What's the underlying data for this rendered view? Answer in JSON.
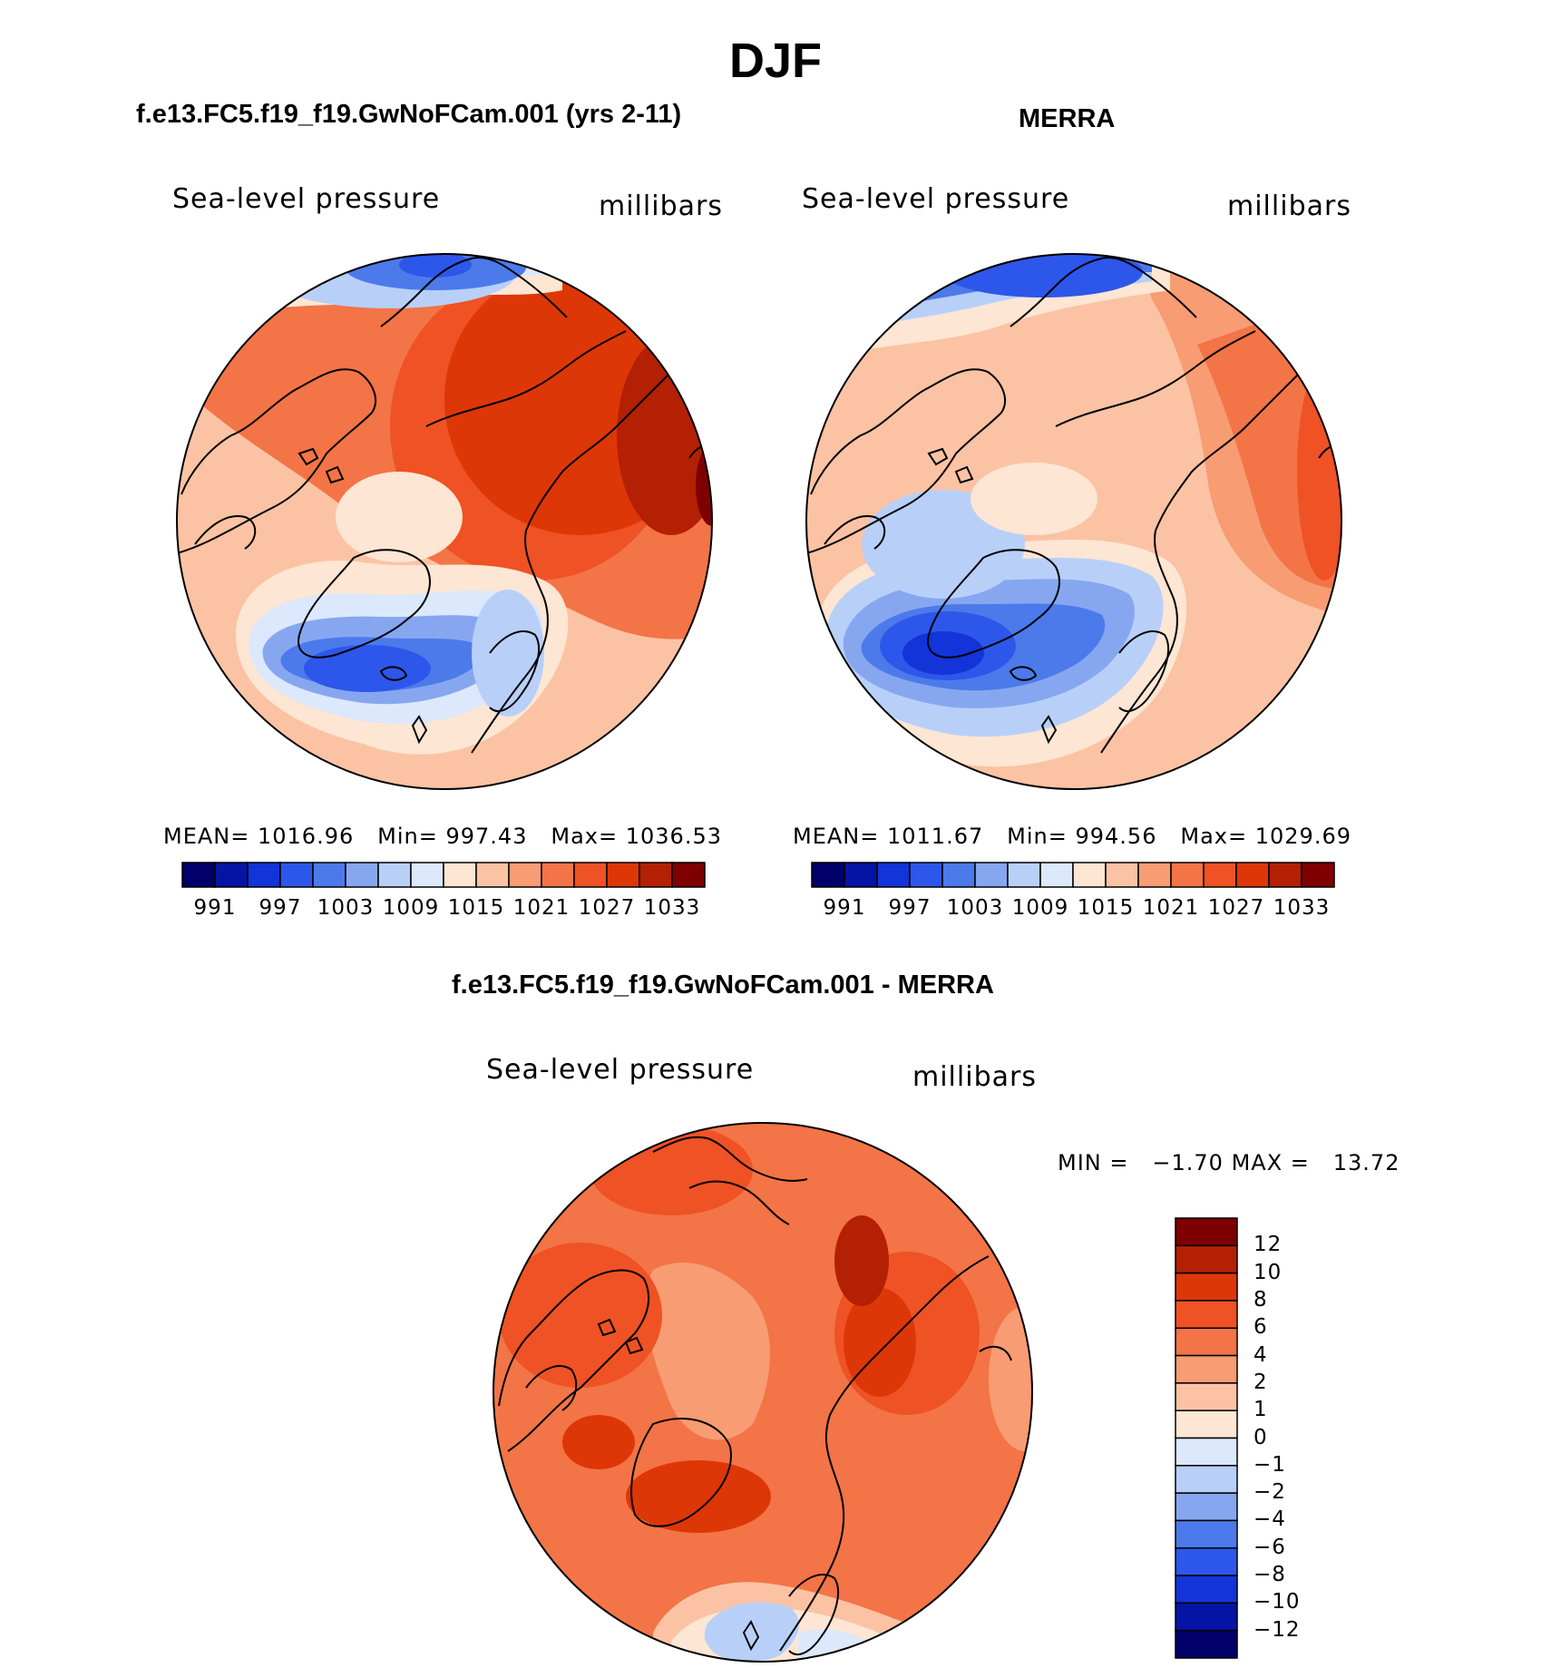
{
  "figure": {
    "season": "DJF",
    "colors": {
      "blue_1": "#01006a",
      "blue_2": "#0614a6",
      "blue_3": "#1234d8",
      "blue_4": "#2d57ea",
      "blue_5": "#4c7aeb",
      "blue_6": "#86a7f0",
      "blue_7": "#b8d0f8",
      "blue_8": "#dce8fb",
      "red_1": "#fde6d3",
      "red_2": "#fbc3a4",
      "red_3": "#f89c73",
      "red_4": "#f37447",
      "red_5": "#ef5224",
      "red_6": "#de3707",
      "red_7": "#b42003",
      "red_8": "#7f0000",
      "coast": "#000000"
    }
  },
  "panels": [
    {
      "title": "f.e13.FC5.f19_f19.GwNoFCam.001 (yrs 2-11)",
      "variable": "Sea-level pressure",
      "units": "millibars",
      "stats": {
        "mean_label": "MEAN=",
        "mean": "1016.96",
        "min_label": "Min=",
        "min": "997.43",
        "max_label": "Max=",
        "max": "1036.53"
      },
      "colorbar_ticks": [
        "991",
        "997",
        "1003",
        "1009",
        "1015",
        "1021",
        "1027",
        "1033"
      ]
    },
    {
      "title": "MERRA",
      "variable": "Sea-level pressure",
      "units": "millibars",
      "stats": {
        "mean_label": "MEAN=",
        "mean": "1011.67",
        "min_label": "Min=",
        "min": "994.56",
        "max_label": "Max=",
        "max": "1029.69"
      },
      "colorbar_ticks": [
        "991",
        "997",
        "1003",
        "1009",
        "1015",
        "1021",
        "1027",
        "1033"
      ]
    },
    {
      "title": "f.e13.FC5.f19_f19.GwNoFCam.001 - MERRA",
      "variable": "Sea-level pressure",
      "units": "millibars",
      "stats": {
        "min_label": "MIN =",
        "min": "−1.70",
        "max_label": "MAX =",
        "max": "13.72"
      },
      "colorbar_ticks": [
        "12",
        "10",
        "8",
        "6",
        "4",
        "2",
        "1",
        "0",
        "−1",
        "−2",
        "−4",
        "−6",
        "−8",
        "−10",
        "−12"
      ]
    }
  ]
}
